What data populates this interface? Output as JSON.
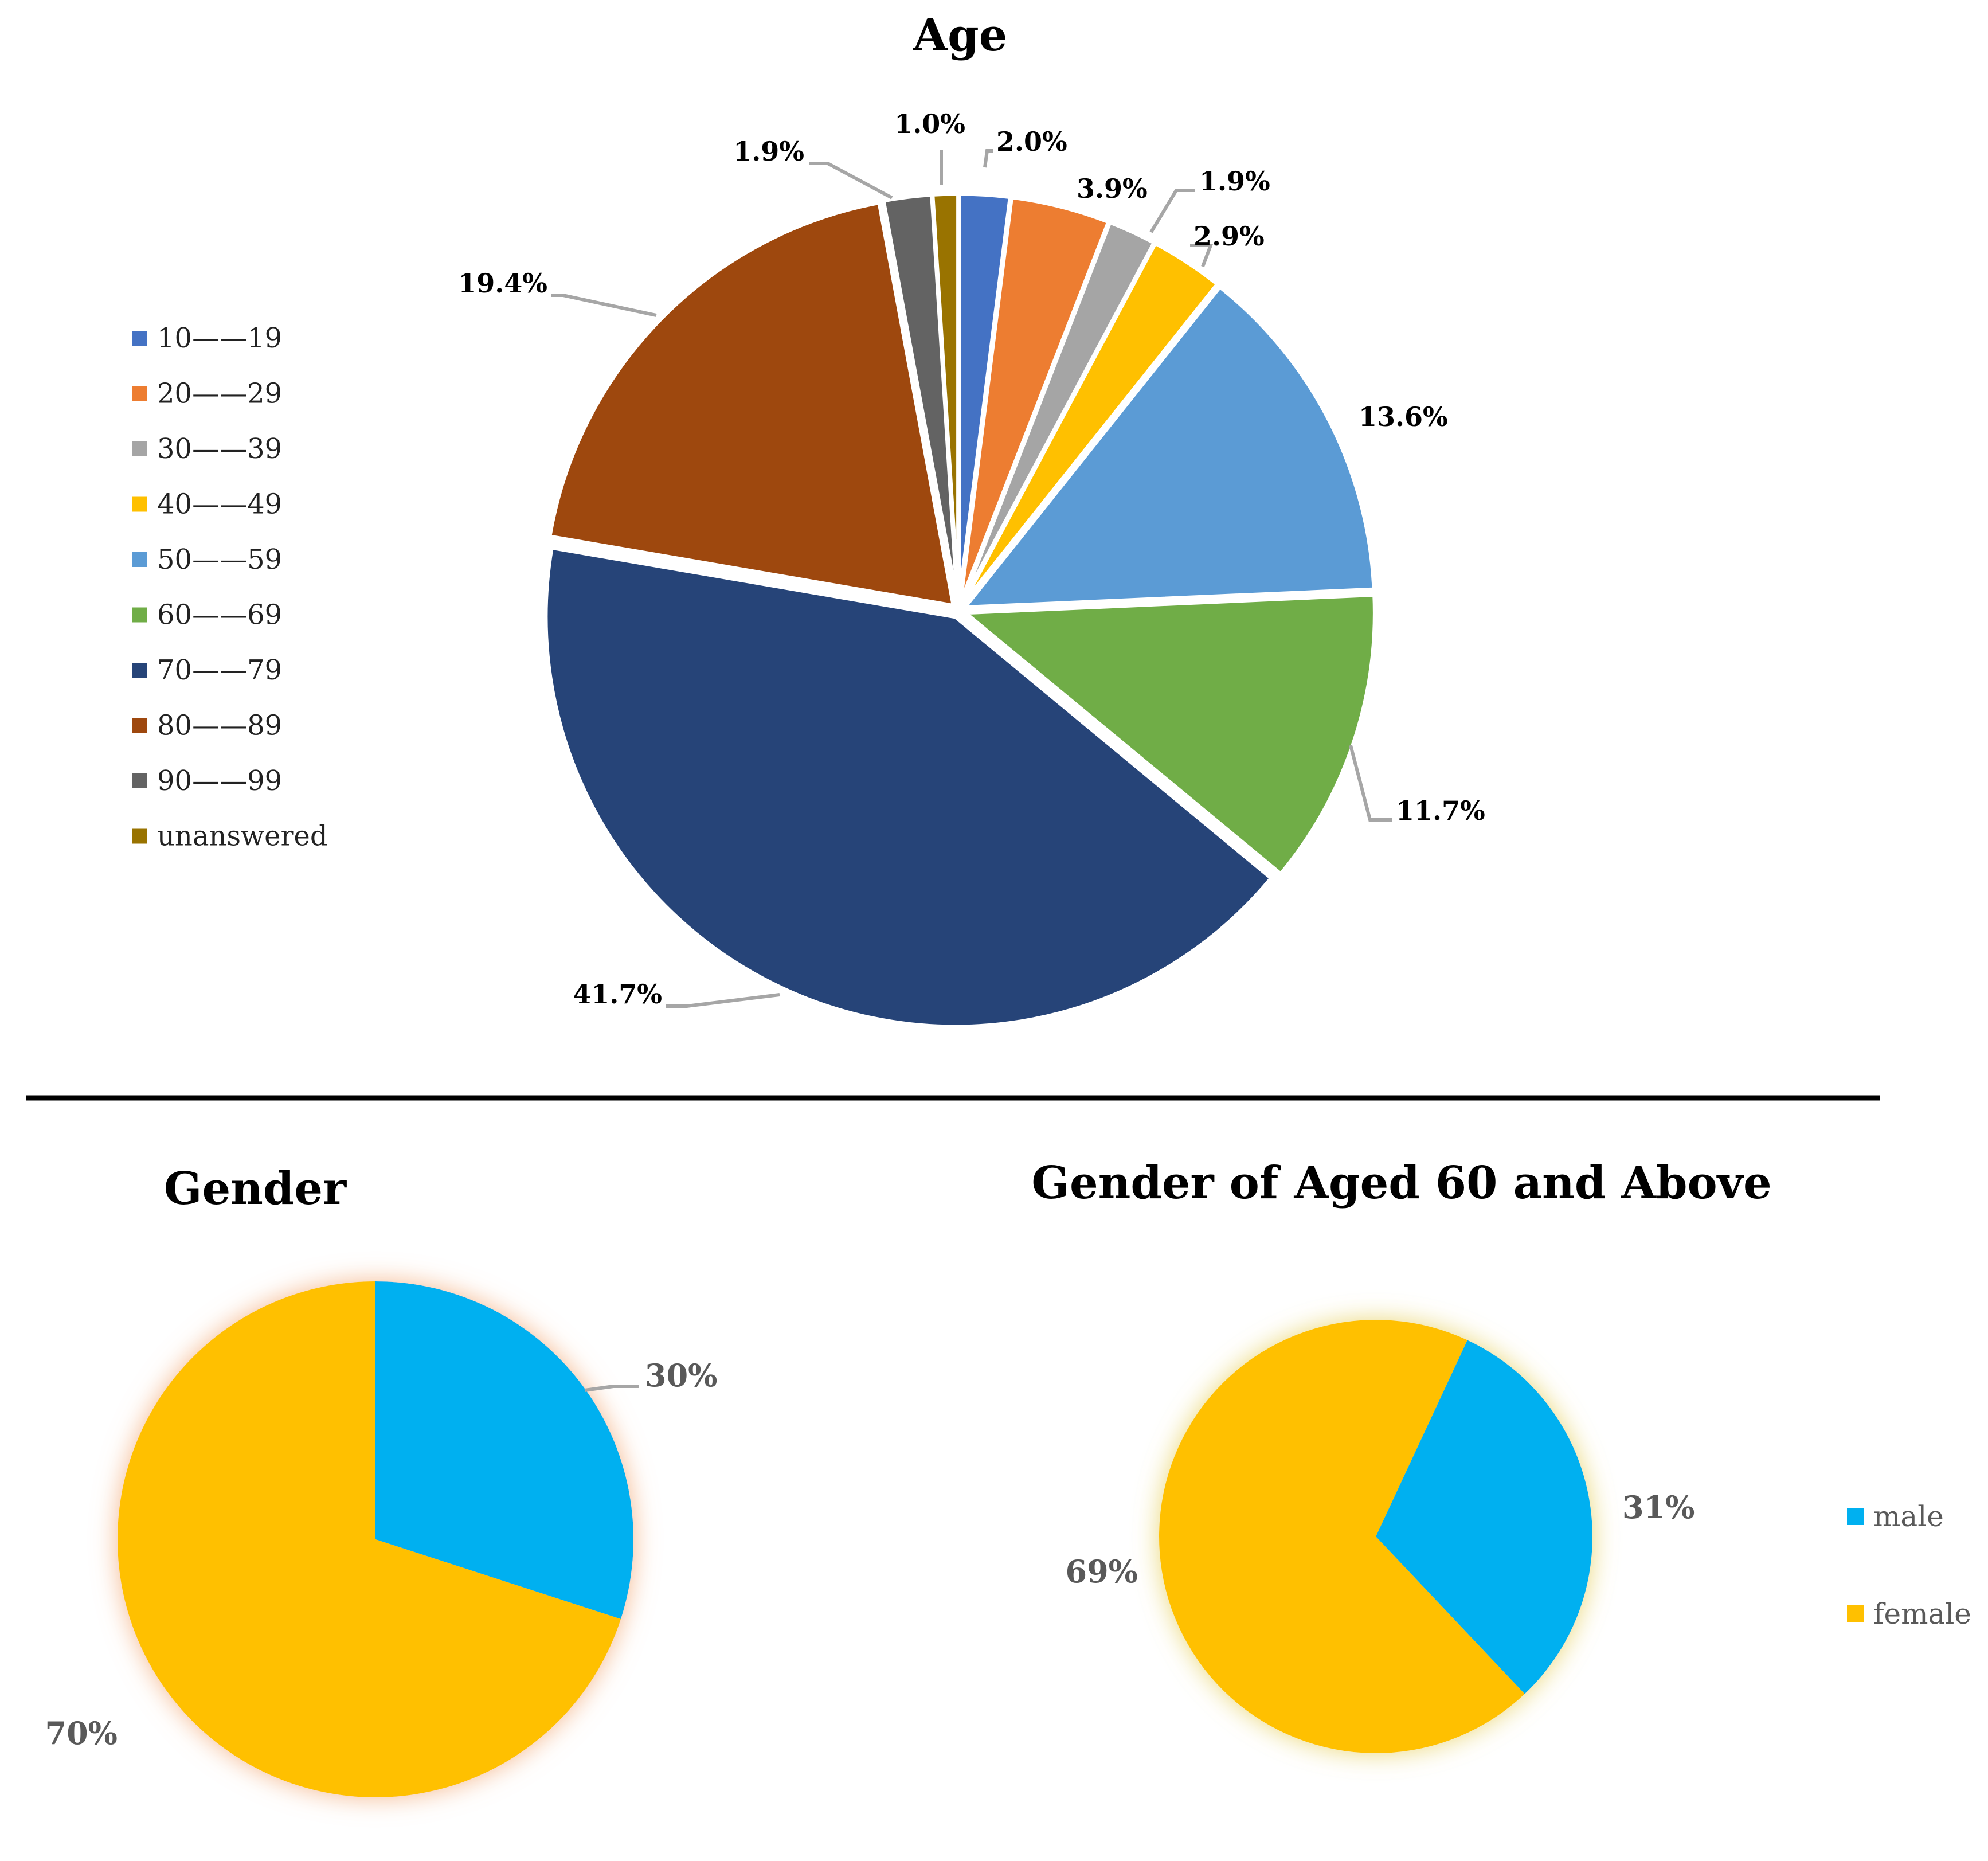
{
  "chart_data": [
    {
      "type": "pie",
      "title": "Age",
      "categories": [
        "10——19",
        "20——29",
        "30——39",
        "40——49",
        "50——59",
        "60——69",
        "70——79",
        "80——89",
        "90——99",
        "unanswered"
      ],
      "values": [
        2.0,
        3.9,
        1.9,
        2.9,
        13.6,
        11.7,
        41.7,
        19.4,
        1.9,
        1.0
      ],
      "data_labels": [
        "2.0%",
        "3.9%",
        "1.9%",
        "2.9%",
        "13.6%",
        "11.7%",
        "41.7%",
        "19.4%",
        "1.9%",
        "1.0%"
      ],
      "colors": [
        "#4472C4",
        "#ED7D31",
        "#A5A5A5",
        "#FFC000",
        "#5B9BD5",
        "#70AD47",
        "#264478",
        "#9E480E",
        "#636363",
        "#997300"
      ],
      "legend_position": "left",
      "exploded": true
    },
    {
      "type": "pie",
      "title": "Gender",
      "categories": [
        "male",
        "female"
      ],
      "values": [
        30,
        70
      ],
      "data_labels": [
        "30%",
        "70%"
      ],
      "colors": [
        "#00B0F0",
        "#FFC000"
      ]
    },
    {
      "type": "pie",
      "title": "Gender of Aged 60 and Above",
      "categories": [
        "male",
        "female"
      ],
      "values": [
        31,
        69
      ],
      "data_labels": [
        "31%",
        "69%"
      ],
      "colors": [
        "#00B0F0",
        "#FFC000"
      ],
      "legend_position": "right"
    }
  ]
}
